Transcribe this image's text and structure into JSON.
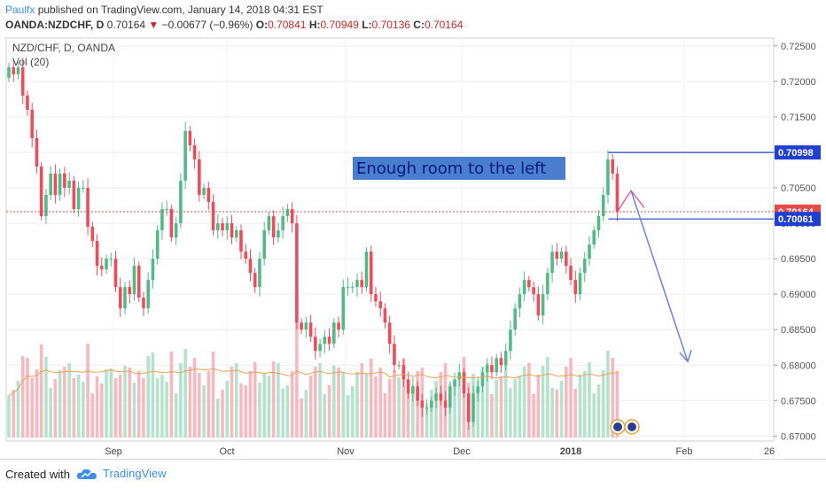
{
  "header": {
    "author": "Paulfx",
    "published_text": "published on TradingView.com, January 14, 2018 04:31 EST",
    "symbol": "OANDA:NZDCHF, D",
    "last": "0.70164",
    "change": "−0.00677 (−0.96%)",
    "o_label": "O:",
    "o_value": "0.70841",
    "h_label": "H:",
    "h_value": "0.70949",
    "l_label": "L:",
    "l_value": "0.70136",
    "c_label": "C:",
    "c_value": "0.70164"
  },
  "footer": {
    "created_with": "Created with",
    "brand": "TradingView"
  },
  "colors": {
    "up": "#53b987",
    "down": "#eb4d5c",
    "vol_up": "#b5e2cc",
    "vol_down": "#f7b9c0",
    "hline": "#1f3fd0",
    "ma": "#f0a050",
    "arrow": "#6f83d0"
  },
  "chart_data": {
    "type": "candlestick",
    "title": "NZD/CHF, D, OANDA",
    "indicator": "Vol (20)",
    "ylim": [
      0.6693,
      0.7261
    ],
    "y_ticks": [
      "0.72500",
      "0.72000",
      "0.71500",
      "0.71000",
      "0.70500",
      "0.70000",
      "0.69500",
      "0.69000",
      "0.68500",
      "0.68000",
      "0.67500",
      "0.67000"
    ],
    "x_ticks": [
      "Sep",
      "Oct",
      "Nov",
      "Dec",
      "2018",
      "Feb",
      "26"
    ],
    "price_labels": [
      {
        "text": "0.70998",
        "value": 0.70998,
        "style": "line"
      },
      {
        "text": "0.70164",
        "value": 0.70164,
        "style": "last"
      },
      {
        "text": "0.70061",
        "value": 0.70061,
        "style": "line"
      }
    ],
    "annotation": "Enough room to the left",
    "closes": [
      0.722,
      0.721,
      0.722,
      0.718,
      0.716,
      0.712,
      0.708,
      0.701,
      0.704,
      0.707,
      0.704,
      0.707,
      0.705,
      0.706,
      0.702,
      0.705,
      0.705,
      0.6995,
      0.6975,
      0.694,
      0.6935,
      0.695,
      0.695,
      0.691,
      0.688,
      0.691,
      0.69,
      0.694,
      0.6895,
      0.688,
      0.692,
      0.695,
      0.699,
      0.702,
      0.702,
      0.698,
      0.7,
      0.706,
      0.713,
      0.711,
      0.709,
      0.704,
      0.705,
      0.703,
      0.699,
      0.7,
      0.699,
      0.7,
      0.698,
      0.699,
      0.696,
      0.695,
      0.693,
      0.691,
      0.695,
      0.699,
      0.701,
      0.698,
      0.699,
      0.701,
      0.702,
      0.7,
      0.686,
      0.685,
      0.686,
      0.684,
      0.682,
      0.683,
      0.684,
      0.683,
      0.686,
      0.685,
      0.691,
      0.691,
      0.691,
      0.692,
      0.691,
      0.696,
      0.69,
      0.689,
      0.688,
      0.686,
      0.683,
      0.68,
      0.68,
      0.678,
      0.676,
      0.677,
      0.675,
      0.674,
      0.674,
      0.675,
      0.676,
      0.675,
      0.674,
      0.677,
      0.678,
      0.679,
      0.676,
      0.672,
      0.676,
      0.677,
      0.679,
      0.68,
      0.679,
      0.681,
      0.68,
      0.682,
      0.685,
      0.688,
      0.69,
      0.692,
      0.691,
      0.69,
      0.687,
      0.69,
      0.693,
      0.696,
      0.695,
      0.696,
      0.694,
      0.692,
      0.69,
      0.693,
      0.695,
      0.697,
      0.699,
      0.701,
      0.704,
      0.709,
      0.707,
      0.7016
    ]
  }
}
